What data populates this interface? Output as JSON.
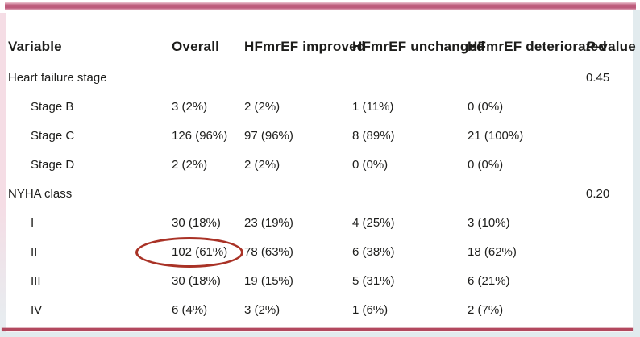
{
  "colors": {
    "rose_bar": "#bd5b7b",
    "rose_bar_light": "#eec6d2",
    "bottom_line": "#b2485e",
    "left_strip_top": "#f5dde5",
    "left_strip_bottom": "#e6eef1",
    "edge_blue": "#e2ebee",
    "annotation_red": "#a93226",
    "text": "#1d1d1b"
  },
  "table": {
    "headers": {
      "variable": "Variable",
      "overall": "Overall",
      "improved": "HFmrEF improved",
      "unchanged": "HFmrEF unchanged",
      "deteriorated": "HFmrEF deteriorated",
      "pvalue_p": "P",
      "pvalue_rest": "-value"
    },
    "rows": [
      {
        "label": "Heart failure stage",
        "overall": "",
        "improved": "",
        "unchanged": "",
        "deteriorated": "",
        "pvalue": "0.45"
      },
      {
        "label": "Stage B",
        "overall": "3 (2%)",
        "improved": "2 (2%)",
        "unchanged": "1 (11%)",
        "deteriorated": "0 (0%)",
        "pvalue": ""
      },
      {
        "label": "Stage C",
        "overall": "126 (96%)",
        "improved": "97 (96%)",
        "unchanged": "8 (89%)",
        "deteriorated": "21 (100%)",
        "pvalue": ""
      },
      {
        "label": "Stage D",
        "overall": "2 (2%)",
        "improved": "2 (2%)",
        "unchanged": "0 (0%)",
        "deteriorated": "0 (0%)",
        "pvalue": ""
      },
      {
        "label": "NYHA class",
        "overall": "",
        "improved": "",
        "unchanged": "",
        "deteriorated": "",
        "pvalue": "0.20"
      },
      {
        "label": "I",
        "overall": "30 (18%)",
        "improved": "23 (19%)",
        "unchanged": "4 (25%)",
        "deteriorated": "3 (10%)",
        "pvalue": ""
      },
      {
        "label": "II",
        "overall": "102 (61%)",
        "improved": "78 (63%)",
        "unchanged": "6 (38%)",
        "deteriorated": "18 (62%)",
        "pvalue": ""
      },
      {
        "label": "III",
        "overall": "30 (18%)",
        "improved": "19 (15%)",
        "unchanged": "5 (31%)",
        "deteriorated": "6 (21%)",
        "pvalue": ""
      },
      {
        "label": "IV",
        "overall": "6 (4%)",
        "improved": "3 (2%)",
        "unchanged": "1 (6%)",
        "deteriorated": "2 (7%)",
        "pvalue": ""
      }
    ]
  },
  "annotation": {
    "shape": "ellipse",
    "circled_value": "102 (61%)"
  }
}
